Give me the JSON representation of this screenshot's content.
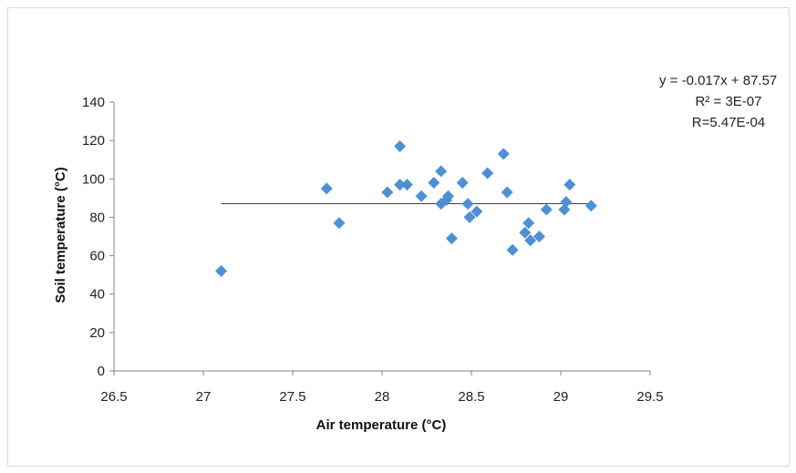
{
  "chart_data": {
    "type": "scatter",
    "xlabel": "Air temperature (°C)",
    "ylabel": "Soil temperature (°C)",
    "xlim": [
      26.5,
      29.5
    ],
    "ylim": [
      0,
      140
    ],
    "x_ticks": [
      "26.5",
      "27",
      "27.5",
      "28",
      "28.5",
      "29",
      "29.5"
    ],
    "y_ticks": [
      "0",
      "20",
      "40",
      "60",
      "80",
      "100",
      "120",
      "140"
    ],
    "grid": false,
    "legend": "none",
    "marker_color": "#4f8fd4",
    "trendline": {
      "slope": -0.017,
      "intercept": 87.57,
      "x_range": [
        27.1,
        29.17
      ],
      "color": "#404040",
      "equation_lines": [
        "y = -0.017x + 87.57",
        "R² = 3E-07",
        "R=5.47E-04"
      ]
    },
    "series": [
      {
        "points": [
          {
            "x": 27.1,
            "y": 52
          },
          {
            "x": 27.69,
            "y": 95
          },
          {
            "x": 27.76,
            "y": 77
          },
          {
            "x": 28.03,
            "y": 93
          },
          {
            "x": 28.1,
            "y": 117
          },
          {
            "x": 28.1,
            "y": 97
          },
          {
            "x": 28.14,
            "y": 97
          },
          {
            "x": 28.22,
            "y": 91
          },
          {
            "x": 28.29,
            "y": 98
          },
          {
            "x": 28.33,
            "y": 104
          },
          {
            "x": 28.33,
            "y": 87
          },
          {
            "x": 28.36,
            "y": 89
          },
          {
            "x": 28.37,
            "y": 91
          },
          {
            "x": 28.39,
            "y": 69
          },
          {
            "x": 28.45,
            "y": 98
          },
          {
            "x": 28.48,
            "y": 87
          },
          {
            "x": 28.49,
            "y": 80
          },
          {
            "x": 28.53,
            "y": 83
          },
          {
            "x": 28.59,
            "y": 103
          },
          {
            "x": 28.68,
            "y": 113
          },
          {
            "x": 28.7,
            "y": 93
          },
          {
            "x": 28.73,
            "y": 63
          },
          {
            "x": 28.8,
            "y": 72
          },
          {
            "x": 28.82,
            "y": 77
          },
          {
            "x": 28.83,
            "y": 68
          },
          {
            "x": 28.88,
            "y": 70
          },
          {
            "x": 28.92,
            "y": 84
          },
          {
            "x": 29.02,
            "y": 84
          },
          {
            "x": 29.03,
            "y": 88
          },
          {
            "x": 29.05,
            "y": 97
          },
          {
            "x": 29.17,
            "y": 86
          }
        ]
      }
    ]
  }
}
